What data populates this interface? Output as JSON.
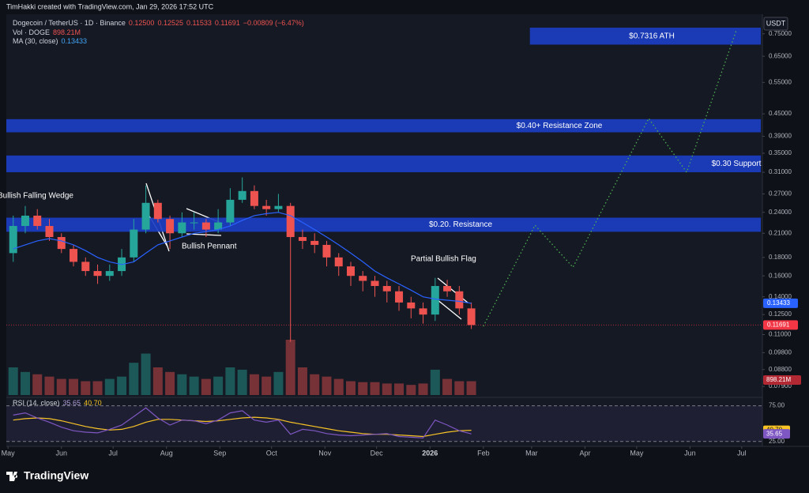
{
  "chart_data": {
    "type": "candlestick",
    "header": "TimHakki created with TradingView.com, Jan 29, 2026 17:52 UTC",
    "legend": {
      "symbol": "Dogecoin / TetherUS · 1D · Binance",
      "open": "0.12500",
      "high": "0.12525",
      "low": "0.11533",
      "close": "0.11691",
      "change": "−0.00809 (−6.47%)",
      "volume_name": "Vol · DOGE",
      "volume_value": "898.21M",
      "ma_name": "MA (30, close)",
      "ma_value": "0.13433"
    },
    "currency": "USDT",
    "log_scale": true,
    "up_color": "#26a69a",
    "down_color": "#ef5350",
    "ma_color": "#2962ff",
    "xlim": [
      -1,
      438
    ],
    "xticks": [
      {
        "value": 0,
        "label": "May"
      },
      {
        "value": 31,
        "label": "Jun"
      },
      {
        "value": 61,
        "label": "Jul"
      },
      {
        "value": 92,
        "label": "Aug"
      },
      {
        "value": 123,
        "label": "Sep"
      },
      {
        "value": 153,
        "label": "Oct"
      },
      {
        "value": 184,
        "label": "Nov"
      },
      {
        "value": 214,
        "label": "Dec"
      },
      {
        "value": 245,
        "label": "2026"
      },
      {
        "value": 276,
        "label": "Feb"
      },
      {
        "value": 304,
        "label": "Mar"
      },
      {
        "value": 335,
        "label": "Apr"
      },
      {
        "value": 365,
        "label": "May"
      },
      {
        "value": 396,
        "label": "Jun"
      },
      {
        "value": 426,
        "label": "Jul"
      }
    ],
    "ylim": [
      0.0767,
      0.8
    ],
    "yticks": [
      {
        "value": 0.75,
        "label": "0.75000"
      },
      {
        "value": 0.65,
        "label": "0.65000"
      },
      {
        "value": 0.55,
        "label": "0.55000"
      },
      {
        "value": 0.45,
        "label": "0.45000"
      },
      {
        "value": 0.39,
        "label": "0.39000"
      },
      {
        "value": 0.35,
        "label": "0.35000"
      },
      {
        "value": 0.31,
        "label": "0.31000"
      },
      {
        "value": 0.27,
        "label": "0.27000"
      },
      {
        "value": 0.24,
        "label": "0.24000"
      },
      {
        "value": 0.21,
        "label": "0.21000"
      },
      {
        "value": 0.18,
        "label": "0.18000"
      },
      {
        "value": 0.16,
        "label": "0.16000"
      },
      {
        "value": 0.14,
        "label": "0.14000"
      },
      {
        "value": 0.125,
        "label": "0.12500"
      },
      {
        "value": 0.11,
        "label": "0.11000"
      },
      {
        "value": 0.098,
        "label": "0.09800"
      },
      {
        "value": 0.088,
        "label": "0.08800"
      },
      {
        "value": 0.079,
        "label": "0.07900"
      }
    ],
    "x": [
      3,
      10,
      17,
      24,
      31,
      38,
      45,
      52,
      59,
      66,
      73,
      80,
      87,
      94,
      101,
      108,
      115,
      122,
      129,
      136,
      143,
      150,
      157,
      164,
      171,
      178,
      185,
      192,
      199,
      206,
      213,
      220,
      227,
      234,
      241,
      248,
      255,
      262,
      269
    ],
    "open": [
      0.185,
      0.22,
      0.235,
      0.22,
      0.205,
      0.19,
      0.175,
      0.165,
      0.16,
      0.165,
      0.18,
      0.215,
      0.255,
      0.23,
      0.21,
      0.225,
      0.225,
      0.215,
      0.225,
      0.26,
      0.275,
      0.25,
      0.245,
      0.25,
      0.205,
      0.2,
      0.195,
      0.18,
      0.17,
      0.16,
      0.155,
      0.15,
      0.145,
      0.135,
      0.13,
      0.125,
      0.15,
      0.145,
      0.13
    ],
    "high": [
      0.235,
      0.25,
      0.245,
      0.23,
      0.21,
      0.195,
      0.18,
      0.172,
      0.172,
      0.19,
      0.23,
      0.285,
      0.26,
      0.235,
      0.24,
      0.24,
      0.23,
      0.245,
      0.28,
      0.3,
      0.285,
      0.26,
      0.27,
      0.255,
      0.215,
      0.21,
      0.2,
      0.185,
      0.175,
      0.165,
      0.16,
      0.155,
      0.15,
      0.14,
      0.135,
      0.158,
      0.156,
      0.15,
      0.135
    ],
    "low": [
      0.175,
      0.21,
      0.215,
      0.2,
      0.185,
      0.17,
      0.16,
      0.152,
      0.155,
      0.16,
      0.175,
      0.21,
      0.225,
      0.19,
      0.205,
      0.215,
      0.205,
      0.21,
      0.22,
      0.255,
      0.245,
      0.235,
      0.24,
      0.105,
      0.19,
      0.185,
      0.17,
      0.16,
      0.15,
      0.145,
      0.14,
      0.135,
      0.128,
      0.122,
      0.118,
      0.12,
      0.14,
      0.125,
      0.114
    ],
    "close": [
      0.22,
      0.235,
      0.22,
      0.205,
      0.19,
      0.175,
      0.165,
      0.16,
      0.165,
      0.18,
      0.215,
      0.255,
      0.23,
      0.21,
      0.225,
      0.225,
      0.215,
      0.225,
      0.26,
      0.275,
      0.25,
      0.245,
      0.25,
      0.205,
      0.2,
      0.195,
      0.18,
      0.17,
      0.16,
      0.155,
      0.15,
      0.145,
      0.135,
      0.13,
      0.125,
      0.15,
      0.145,
      0.13,
      0.11691
    ],
    "ma": [
      0.19,
      0.195,
      0.2,
      0.203,
      0.2,
      0.195,
      0.188,
      0.18,
      0.175,
      0.172,
      0.175,
      0.185,
      0.195,
      0.2,
      0.205,
      0.21,
      0.212,
      0.215,
      0.22,
      0.228,
      0.235,
      0.238,
      0.24,
      0.235,
      0.225,
      0.215,
      0.205,
      0.195,
      0.185,
      0.175,
      0.165,
      0.158,
      0.152,
      0.146,
      0.14,
      0.138,
      0.137,
      0.136,
      0.13433
    ],
    "volume": [
      60,
      50,
      45,
      40,
      35,
      35,
      30,
      30,
      35,
      40,
      70,
      90,
      60,
      50,
      45,
      40,
      35,
      40,
      60,
      55,
      45,
      40,
      50,
      120,
      60,
      45,
      40,
      35,
      30,
      28,
      28,
      25,
      25,
      22,
      25,
      55,
      35,
      30,
      30
    ],
    "price_tags": [
      {
        "value": 0.13433,
        "color": "#2962ff"
      },
      {
        "value": 0.11691,
        "color": "#f23645"
      }
    ],
    "volume_tag": "898.21M",
    "zones": [
      {
        "label": "$0.7316 ATH",
        "low": 0.7,
        "high": 0.78,
        "x_start": 303
      },
      {
        "label": "$0.40+ Resistance Zone",
        "low": 0.4,
        "high": 0.435
      },
      {
        "label": "$0.30 Support",
        "low": 0.31,
        "high": 0.345
      },
      {
        "label": "$0.20. Resistance",
        "low": 0.212,
        "high": 0.232
      }
    ],
    "zone_color": "#1c3dc2",
    "projection": {
      "x": [
        276,
        306,
        328,
        372,
        394,
        423
      ],
      "values": [
        0.116,
        0.221,
        0.169,
        0.437,
        0.31,
        0.77
      ],
      "color": "#4caf50"
    },
    "annotations": [
      "Bullish Falling Wedge",
      "Bullish Pennant",
      "Partial Bullish Flag"
    ],
    "rsi": {
      "title": "RSI (14, close)",
      "value": 35.65,
      "ma_value": {
        "value": 40.7,
        "label": "40.70"
      },
      "color": "#7e57c2",
      "ma_color": "#f7c325",
      "ylim": [
        17,
        79
      ],
      "yticks": [
        {
          "value": 75,
          "label": "75.00"
        },
        {
          "value": 25,
          "label": "25.00"
        }
      ],
      "values": [
        62,
        65,
        58,
        52,
        45,
        40,
        38,
        37,
        42,
        48,
        60,
        72,
        58,
        48,
        55,
        54,
        50,
        55,
        65,
        68,
        55,
        52,
        55,
        35,
        42,
        40,
        36,
        34,
        33,
        34,
        35,
        36,
        32,
        31,
        30,
        55,
        48,
        40,
        35.65
      ],
      "ma": [
        55,
        57,
        58,
        57,
        54,
        50,
        46,
        43,
        41,
        42,
        46,
        52,
        56,
        56,
        55,
        54,
        53,
        54,
        56,
        58,
        59,
        58,
        56,
        52,
        49,
        46,
        43,
        40,
        38,
        36,
        35,
        35,
        34,
        33,
        32,
        35,
        38,
        40,
        40.7
      ]
    },
    "brand": "TradingView"
  }
}
